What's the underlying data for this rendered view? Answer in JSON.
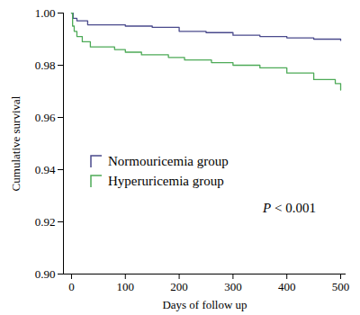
{
  "chart_data": {
    "type": "line",
    "x_label": "Days of follow up",
    "y_label": "Cumulative survival",
    "xlim": [
      -15,
      510
    ],
    "xticks": [
      0,
      100,
      200,
      300,
      400,
      500
    ],
    "ylim": [
      0.9,
      1.0
    ],
    "yticks": [
      {
        "value": 0.9,
        "label": "0.90"
      },
      0.92,
      0.94,
      0.96,
      0.98,
      {
        "value": 1.0,
        "label": "1.00"
      }
    ],
    "line_style": "step",
    "legend": "left",
    "grid": false,
    "annotations": [
      {
        "text": "P < 0.001"
      }
    ],
    "series": [
      {
        "name": "Normouricemia group",
        "color": "#4a4a8c",
        "x": [
          0,
          3,
          10,
          30,
          100,
          150,
          200,
          250,
          300,
          350,
          400,
          450,
          500
        ],
        "values": [
          1.0,
          0.998,
          0.997,
          0.9955,
          0.995,
          0.9945,
          0.993,
          0.9925,
          0.9915,
          0.991,
          0.9905,
          0.99,
          0.9895
        ]
      },
      {
        "name": "Hyperuricemia group",
        "color": "#4daa57",
        "x": [
          0,
          2,
          5,
          10,
          20,
          35,
          80,
          100,
          130,
          180,
          210,
          260,
          300,
          350,
          400,
          450,
          490,
          500
        ],
        "values": [
          1.0,
          0.995,
          0.993,
          0.991,
          0.989,
          0.987,
          0.986,
          0.985,
          0.984,
          0.983,
          0.982,
          0.981,
          0.98,
          0.979,
          0.977,
          0.9745,
          0.973,
          0.9705
        ]
      }
    ]
  }
}
